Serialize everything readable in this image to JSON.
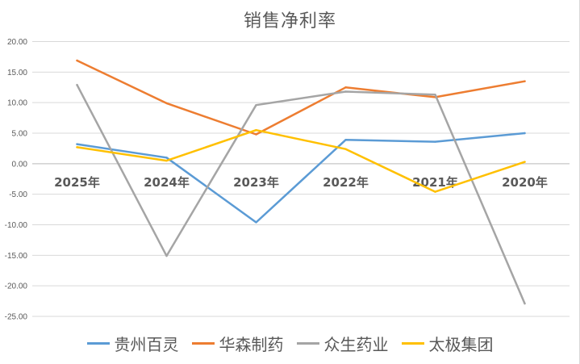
{
  "chart_data": {
    "type": "line",
    "title": "销售净利率",
    "categories": [
      "2025年",
      "2024年",
      "2023年",
      "2022年",
      "2021年",
      "2020年"
    ],
    "ylim": [
      -25,
      20
    ],
    "yticks": [
      "20.00",
      "15.00",
      "10.00",
      "5.00",
      "0.00",
      "-5.00",
      "-10.00",
      "-15.00",
      "-20.00",
      "-25.00"
    ],
    "grid": true,
    "legend_position": "bottom",
    "series": [
      {
        "name": "贵州百灵",
        "color": "#5b9bd5",
        "values": [
          3.2,
          1.0,
          -9.6,
          3.9,
          3.6,
          5.0
        ]
      },
      {
        "name": "华森制药",
        "color": "#ed7d31",
        "values": [
          16.9,
          9.9,
          4.8,
          12.5,
          10.9,
          13.5
        ]
      },
      {
        "name": "众生药业",
        "color": "#a5a5a5",
        "values": [
          12.9,
          -15.1,
          9.6,
          11.8,
          11.3,
          -22.9
        ]
      },
      {
        "name": "太极集团",
        "color": "#ffc000",
        "values": [
          2.7,
          0.5,
          5.5,
          2.4,
          -4.6,
          0.3
        ]
      }
    ]
  }
}
